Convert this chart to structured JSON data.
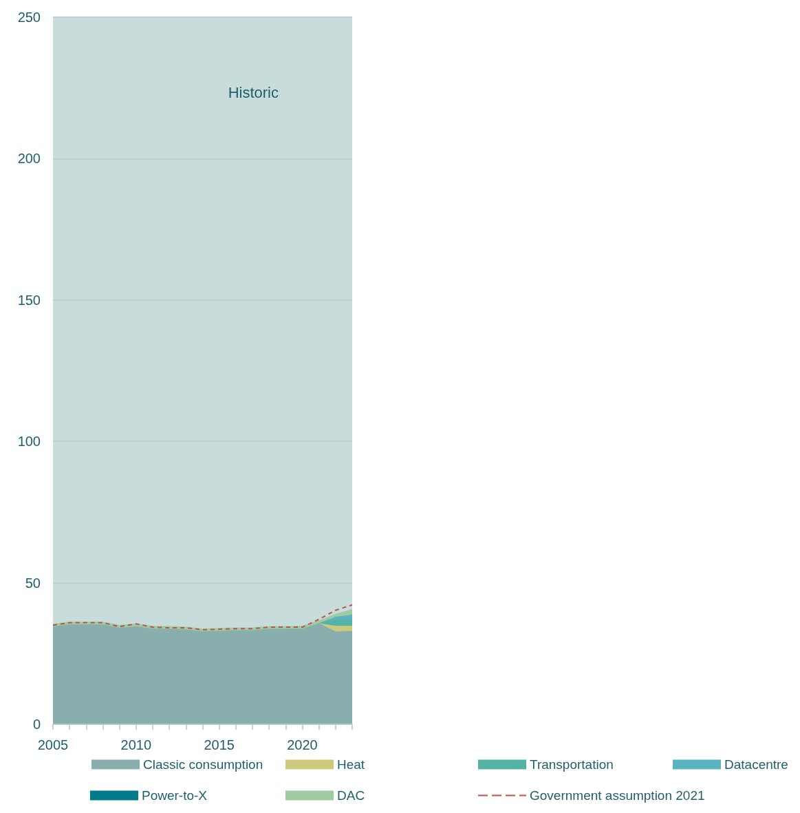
{
  "chart_data": {
    "type": "area",
    "stacked": true,
    "x": [
      2005,
      2006,
      2007,
      2008,
      2009,
      2010,
      2011,
      2012,
      2013,
      2014,
      2015,
      2016,
      2017,
      2018,
      2019,
      2020,
      2021,
      2022,
      2023
    ],
    "series": [
      {
        "name": "Classic consumption",
        "color": "#88afae",
        "values": [
          34.5,
          35.3,
          35.3,
          35.3,
          34.1,
          34.6,
          33.8,
          33.7,
          33.5,
          32.8,
          33.0,
          33.2,
          33.2,
          33.7,
          33.7,
          33.8,
          35.7,
          32.8,
          33.0
        ]
      },
      {
        "name": "Heat",
        "color": "#cbc97c",
        "values": [
          null,
          null,
          null,
          null,
          null,
          null,
          null,
          null,
          null,
          null,
          null,
          null,
          null,
          null,
          null,
          null,
          0,
          2.0,
          1.8
        ]
      },
      {
        "name": "Transportation",
        "color": "#55b3a5",
        "values": [
          null,
          null,
          null,
          null,
          null,
          null,
          null,
          null,
          null,
          null,
          null,
          null,
          null,
          null,
          null,
          null,
          0,
          2.0,
          2.0
        ]
      },
      {
        "name": "Datacentre",
        "color": "#5ab4c0",
        "values": [
          null,
          null,
          null,
          null,
          null,
          null,
          null,
          null,
          null,
          null,
          null,
          null,
          null,
          null,
          null,
          null,
          0,
          1.2,
          2.0
        ]
      },
      {
        "name": "Power-to-X",
        "color": "#007b8a",
        "values": [
          null,
          null,
          null,
          null,
          null,
          null,
          null,
          null,
          null,
          null,
          null,
          null,
          null,
          null,
          null,
          null,
          null,
          null,
          null
        ]
      },
      {
        "name": "DAC",
        "color": "#9ecba0",
        "values": [
          1.0,
          1.0,
          1.0,
          1.0,
          1.0,
          1.0,
          1.0,
          1.0,
          1.0,
          1.0,
          1.0,
          1.0,
          1.0,
          1.0,
          1.0,
          1.0,
          1.0,
          1.0,
          1.9
        ]
      },
      {
        "name": "Government assumption 2021",
        "type": "line",
        "color": "#c0504d",
        "line_style": "dashed",
        "marker": "none",
        "values": [
          35.0,
          35.9,
          35.9,
          35.9,
          34.5,
          35.5,
          34.3,
          34.1,
          34.1,
          33.4,
          33.6,
          33.8,
          33.8,
          34.3,
          34.3,
          34.3,
          37.1,
          40.3,
          42.2
        ]
      }
    ],
    "xlim": [
      2005,
      2023
    ],
    "xticks": [
      2005,
      {
        "value": 2006,
        "label": null
      },
      {
        "value": 2007,
        "label": null
      },
      {
        "value": 2008,
        "label": null
      },
      {
        "value": 2009,
        "label": null
      },
      2010,
      {
        "value": 2011,
        "label": null
      },
      {
        "value": 2012,
        "label": null
      },
      {
        "value": 2013,
        "label": null
      },
      {
        "value": 2014,
        "label": null
      },
      2015,
      {
        "value": 2016,
        "label": null
      },
      {
        "value": 2017,
        "label": null
      },
      {
        "value": 2018,
        "label": null
      },
      {
        "value": 2019,
        "label": null
      },
      2020,
      {
        "value": 2021,
        "label": null
      },
      {
        "value": 2022,
        "label": null
      },
      {
        "value": 2023,
        "label": null
      }
    ],
    "ylim": [
      0,
      250
    ],
    "yticks": [
      0,
      50,
      100,
      150,
      200,
      250
    ],
    "grid": "y",
    "legend": "bottom",
    "bands": [
      {
        "axis": "x",
        "from": 2005,
        "to": 2023,
        "label": "Historic",
        "color": "#c8dcdc"
      }
    ]
  }
}
